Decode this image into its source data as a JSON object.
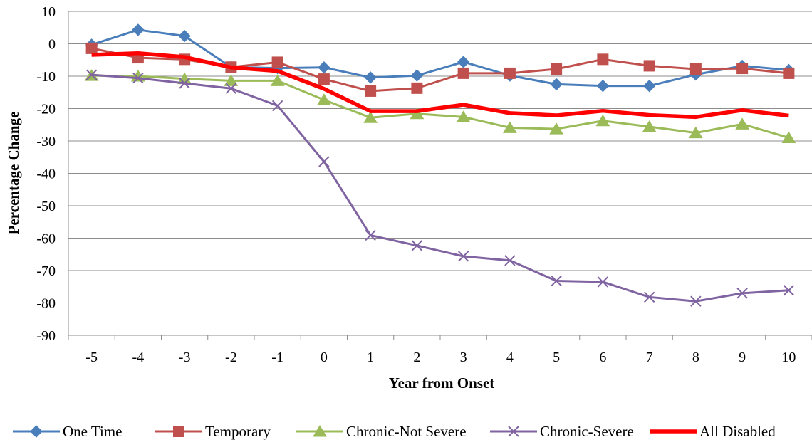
{
  "chart_data": {
    "type": "line",
    "title": "",
    "xlabel": "Year from Onset",
    "ylabel": "Percentage Change",
    "ylim": [
      -90,
      10
    ],
    "yticks": [
      10,
      0,
      -10,
      -20,
      -30,
      -40,
      -50,
      -60,
      -70,
      -80,
      -90
    ],
    "grid": "horizontal",
    "legend_position": "bottom",
    "categories": [
      "-5",
      "-4",
      "-3",
      "-2",
      "-1",
      "0",
      "1",
      "2",
      "3",
      "4",
      "5",
      "6",
      "7",
      "8",
      "9",
      "10"
    ],
    "series": [
      {
        "name": "One Time",
        "color": "#4a7ebb",
        "marker": "diamond",
        "values": [
          -0.3,
          4.3,
          2.4,
          -7.2,
          -7.5,
          -7.3,
          -10.4,
          -9.8,
          -5.6,
          -9.8,
          -12.5,
          -13.0,
          -13.0,
          -9.5,
          -6.8,
          -8.1
        ]
      },
      {
        "name": "Temporary",
        "color": "#c0504d",
        "marker": "square",
        "values": [
          -1.4,
          -4.3,
          -4.8,
          -7.2,
          -5.7,
          -10.9,
          -14.6,
          -13.7,
          -9.1,
          -9.1,
          -7.8,
          -4.8,
          -6.8,
          -7.8,
          -7.6,
          -9.1
        ]
      },
      {
        "name": "Chronic-Not Severe",
        "color": "#9bbb59",
        "marker": "triangle",
        "values": [
          -9.8,
          -10.0,
          -10.8,
          -11.4,
          -11.4,
          -17.3,
          -22.8,
          -21.6,
          -22.6,
          -25.9,
          -26.3,
          -23.8,
          -25.6,
          -27.5,
          -24.8,
          -29.0
        ]
      },
      {
        "name": "Chronic-Severe",
        "color": "#8064a2",
        "marker": "x",
        "values": [
          -9.6,
          -10.6,
          -12.2,
          -13.8,
          -19.1,
          -36.4,
          -59.1,
          -62.3,
          -65.6,
          -66.9,
          -73.2,
          -73.5,
          -78.2,
          -79.5,
          -77.0,
          -76.1
        ]
      },
      {
        "name": "All Disabled",
        "color": "#ff0000",
        "marker": "none",
        "values": [
          -3.4,
          -2.9,
          -4.1,
          -7.3,
          -8.4,
          -13.9,
          -20.8,
          -20.8,
          -18.8,
          -21.4,
          -22.1,
          -20.7,
          -22.0,
          -22.6,
          -20.5,
          -22.2
        ]
      }
    ]
  }
}
